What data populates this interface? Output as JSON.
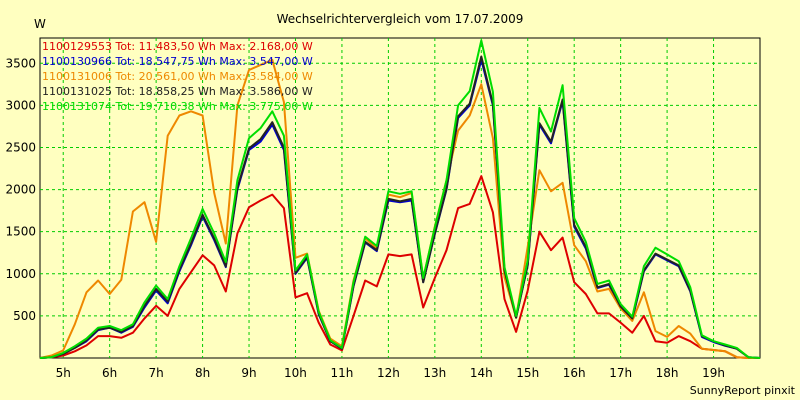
{
  "chart_data": {
    "type": "line",
    "title": "Wechselrichtervergleich vom 17.07.2009",
    "ylabel": "W",
    "xlabel": "",
    "credit": "SunnyReport pinxit",
    "ylim": [
      0,
      3800
    ],
    "y_ticks": [
      500,
      1000,
      1500,
      2000,
      2500,
      3000,
      3500
    ],
    "x_hour_range": [
      4.5,
      20.0
    ],
    "x_ticks": [
      {
        "label": "5h",
        "hour": 5.0
      },
      {
        "label": "6h",
        "hour": 6.0
      },
      {
        "label": "7h",
        "hour": 7.0
      },
      {
        "label": "8h",
        "hour": 8.0
      },
      {
        "label": "9h",
        "hour": 9.0
      },
      {
        "label": "10h",
        "hour": 10.0
      },
      {
        "label": "11h",
        "hour": 11.0
      },
      {
        "label": "12h",
        "hour": 12.0
      },
      {
        "label": "13h",
        "hour": 13.0
      },
      {
        "label": "14h",
        "hour": 14.0
      },
      {
        "label": "15h",
        "hour": 15.0
      },
      {
        "label": "16h",
        "hour": 16.0
      },
      {
        "label": "17h",
        "hour": 17.0
      },
      {
        "label": "18h",
        "hour": 18.0
      },
      {
        "label": "19h",
        "hour": 19.0
      }
    ],
    "grid": true,
    "x": [
      4.5,
      4.75,
      5,
      5.25,
      5.5,
      5.75,
      6,
      6.25,
      6.5,
      6.75,
      7,
      7.25,
      7.5,
      7.75,
      8,
      8.25,
      8.5,
      8.75,
      9,
      9.25,
      9.5,
      9.75,
      10,
      10.25,
      10.5,
      10.75,
      11,
      11.25,
      11.5,
      11.75,
      12,
      12.25,
      12.5,
      12.75,
      13,
      13.25,
      13.5,
      13.75,
      14,
      14.25,
      14.5,
      14.75,
      15,
      15.25,
      15.5,
      15.75,
      16,
      16.25,
      16.5,
      16.75,
      17,
      17.25,
      17.5,
      17.75,
      18,
      18.25,
      18.5,
      18.75,
      19,
      19.25,
      19.5,
      19.75,
      20
    ],
    "series": [
      {
        "name": "1100129553",
        "legend": "1100129553 Tot: 11.483,50 Wh Max: 2.168,00 W",
        "color": "#dd0000",
        "values": [
          0,
          10,
          30,
          80,
          150,
          260,
          260,
          240,
          300,
          470,
          620,
          500,
          820,
          1020,
          1220,
          1100,
          790,
          1480,
          1790,
          1870,
          1940,
          1780,
          720,
          770,
          420,
          160,
          90,
          500,
          920,
          850,
          1230,
          1210,
          1230,
          600,
          950,
          1280,
          1780,
          1830,
          2160,
          1730,
          700,
          310,
          800,
          1500,
          1280,
          1430,
          900,
          760,
          530,
          530,
          420,
          300,
          500,
          200,
          180,
          260,
          200,
          110,
          95,
          80,
          10,
          0,
          0
        ]
      },
      {
        "name": "1100130966",
        "legend": "1100130966 Tot: 18.547,75 Wh Max: 3.547,00 W",
        "color": "#0000cc",
        "values": [
          0,
          10,
          50,
          120,
          200,
          330,
          360,
          300,
          370,
          600,
          800,
          650,
          1030,
          1340,
          1680,
          1400,
          1080,
          2000,
          2470,
          2570,
          2770,
          2470,
          1000,
          1190,
          520,
          200,
          110,
          850,
          1370,
          1270,
          1870,
          1850,
          1870,
          900,
          1470,
          2000,
          2850,
          3000,
          3540,
          3000,
          1030,
          480,
          1100,
          2770,
          2550,
          3050,
          1560,
          1300,
          830,
          870,
          600,
          460,
          1030,
          1230,
          1160,
          1090,
          790,
          250,
          190,
          145,
          110,
          10,
          0
        ]
      },
      {
        "name": "1100131006",
        "legend": "1100131006 Tot: 20.561,00 Wh Max: 3.584,00 W",
        "color": "#ee8800",
        "values": [
          0,
          30,
          90,
          400,
          780,
          920,
          760,
          930,
          1740,
          1850,
          1380,
          2640,
          2880,
          2930,
          2880,
          1960,
          1360,
          3000,
          3420,
          3480,
          3540,
          3040,
          1190,
          1240,
          560,
          230,
          140,
          920,
          1420,
          1300,
          1940,
          1910,
          1960,
          940,
          1560,
          2110,
          2700,
          2880,
          3250,
          2610,
          960,
          480,
          1320,
          2230,
          1980,
          2080,
          1340,
          1150,
          790,
          820,
          590,
          440,
          780,
          320,
          250,
          380,
          290,
          110,
          95,
          80,
          10,
          0,
          0
        ]
      },
      {
        "name": "1100131025",
        "legend": "1100131025 Tot: 18.858,25 Wh Max: 3.586,00 W",
        "color": "#222222",
        "values": [
          0,
          10,
          50,
          120,
          210,
          340,
          360,
          310,
          380,
          620,
          820,
          670,
          1050,
          1360,
          1700,
          1420,
          1090,
          2020,
          2490,
          2600,
          2800,
          2500,
          1010,
          1200,
          530,
          200,
          110,
          860,
          1380,
          1280,
          1890,
          1860,
          1890,
          900,
          1480,
          2010,
          2870,
          3020,
          3580,
          3020,
          1040,
          480,
          1110,
          2790,
          2570,
          3070,
          1580,
          1320,
          840,
          880,
          610,
          470,
          1040,
          1240,
          1170,
          1100,
          800,
          260,
          200,
          150,
          110,
          10,
          0
        ]
      },
      {
        "name": "1100131074",
        "legend": "1100131074 Tot: 19.710,38 Wh Max: 3.775,00 W",
        "color": "#00dd00",
        "values": [
          0,
          10,
          60,
          140,
          230,
          360,
          380,
          330,
          400,
          660,
          860,
          700,
          1090,
          1420,
          1770,
          1480,
          1140,
          2110,
          2610,
          2730,
          2930,
          2640,
          1040,
          1230,
          550,
          210,
          120,
          900,
          1440,
          1330,
          1980,
          1950,
          1980,
          950,
          1550,
          2110,
          3000,
          3170,
          3770,
          3160,
          1080,
          500,
          1160,
          2970,
          2690,
          3240,
          1660,
          1380,
          880,
          920,
          640,
          490,
          1090,
          1310,
          1230,
          1150,
          840,
          270,
          200,
          160,
          120,
          10,
          0
        ]
      }
    ]
  }
}
